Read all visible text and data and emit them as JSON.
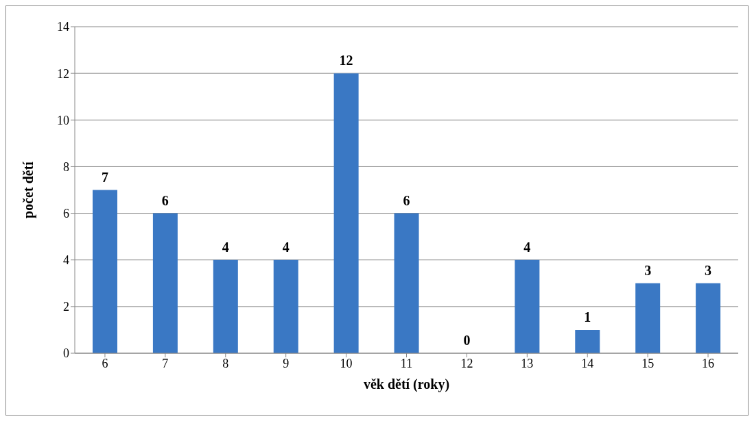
{
  "chart_data": {
    "type": "bar",
    "xlabel": "věk dětí (roky)",
    "ylabel": "počet dětí",
    "categories": [
      "6",
      "7",
      "8",
      "9",
      "10",
      "11",
      "12",
      "13",
      "14",
      "15",
      "16"
    ],
    "values": [
      7,
      6,
      4,
      4,
      12,
      6,
      0,
      4,
      1,
      3,
      3
    ],
    "color": "#3a78c4",
    "ylim": [
      0,
      14
    ],
    "yticks": [
      0,
      2,
      4,
      6,
      8,
      10,
      12,
      14
    ],
    "grid": "y",
    "data_labels": true
  }
}
